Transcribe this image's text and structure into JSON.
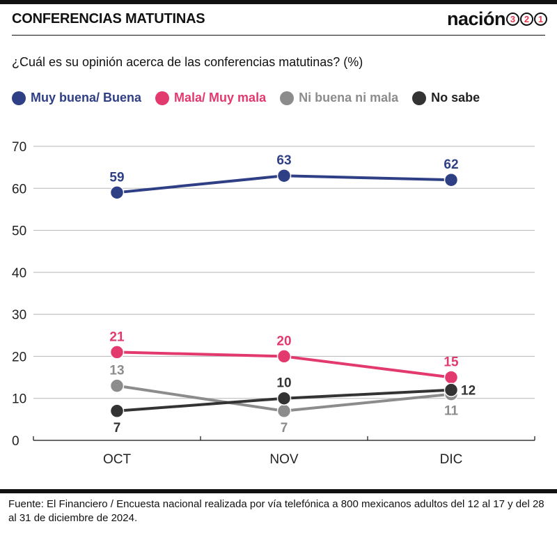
{
  "header": {
    "title": "CONFERENCIAS MATUTINAS",
    "brand_word": "nación",
    "brand_digits": [
      "3",
      "2",
      "1"
    ]
  },
  "question": "¿Cuál es su opinión acerca de las conferencias matutinas?  (%)",
  "legend": [
    {
      "label": "Muy buena/ Buena",
      "color": "#2f3f86"
    },
    {
      "label": "Mala/ Muy mala",
      "color": "#e23a6e"
    },
    {
      "label": "Ni buena ni mala",
      "color": "#8c8c8c"
    },
    {
      "label": "No sabe",
      "color": "#333333"
    }
  ],
  "chart_data": {
    "type": "line",
    "x": [
      "OCT",
      "NOV",
      "DIC"
    ],
    "ylim": [
      0,
      70
    ],
    "yticks": [
      0,
      10,
      20,
      30,
      40,
      50,
      60,
      70
    ],
    "grid": true,
    "legend_position": "top-left",
    "series": [
      {
        "name": "Muy buena/ Buena",
        "values": [
          59,
          63,
          62
        ],
        "color": "#2f3f86",
        "label_pos": [
          "above",
          "above",
          "above"
        ]
      },
      {
        "name": "Mala/ Muy mala",
        "values": [
          21,
          20,
          15
        ],
        "color": "#e23a6e",
        "label_pos": [
          "above",
          "above",
          "above"
        ]
      },
      {
        "name": "Ni buena ni mala",
        "values": [
          13,
          7,
          11
        ],
        "color": "#8c8c8c",
        "label_pos": [
          "above",
          "below",
          "below"
        ]
      },
      {
        "name": "No sabe",
        "values": [
          7,
          10,
          12
        ],
        "color": "#333333",
        "label_pos": [
          "below",
          "above",
          "right"
        ]
      }
    ]
  },
  "footer": {
    "source": "Fuente: El Financiero / Encuesta nacional realizada por vía telefónica a 800 mexicanos adultos del 12 al 17 y del 28 al 31 de diciembre de 2024."
  }
}
